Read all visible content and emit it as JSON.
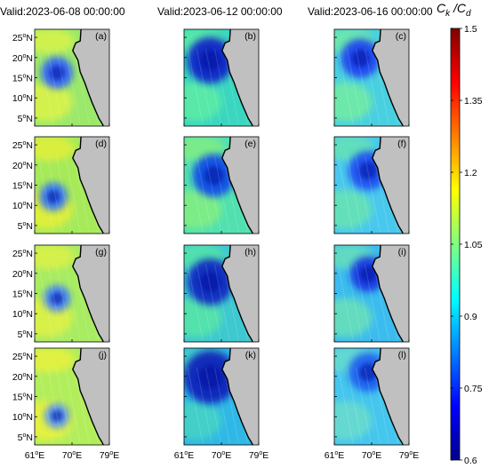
{
  "column_titles": [
    "Valid:2023-06-08 00:00:00",
    "Valid:2023-06-12 00:00:00",
    "Valid:2023-06-16 00:00:00"
  ],
  "panel_labels": [
    "(a)",
    "(b)",
    "(c)",
    "(d)",
    "(e)",
    "(f)",
    "(g)",
    "(h)",
    "(i)",
    "(j)",
    "(k)",
    "(l)"
  ],
  "lat_ticks": [
    {
      "base": "25",
      "deg": "o",
      "hem": "N",
      "lat": 25
    },
    {
      "base": "20",
      "deg": "o",
      "hem": "N",
      "lat": 20
    },
    {
      "base": "15",
      "deg": "o",
      "hem": "N",
      "lat": 15
    },
    {
      "base": "10",
      "deg": "o",
      "hem": "N",
      "lat": 10
    },
    {
      "base": "5",
      "deg": "o",
      "hem": "N",
      "lat": 5
    }
  ],
  "lon_ticks": [
    {
      "base": "61",
      "deg": "o",
      "hem": "E",
      "lon": 61
    },
    {
      "base": "70",
      "deg": "o",
      "hem": "E",
      "lon": 70
    },
    {
      "base": "79",
      "deg": "o",
      "hem": "E",
      "lon": 79
    }
  ],
  "extent": {
    "lon": [
      61,
      79
    ],
    "lat": [
      3,
      27
    ]
  },
  "colorbar": {
    "label_main": "C",
    "label_sub1": "k",
    "label_sep": " /C",
    "label_sub2": "d",
    "range": [
      0.6,
      1.5
    ],
    "ticks": [
      "1.5",
      "1.35",
      "1.2",
      "1.05",
      "0.9",
      "0.75",
      "0.6"
    ],
    "colormap": "jet"
  },
  "colors": {
    "land": "#c0c0c0",
    "coast": "#000000"
  }
}
